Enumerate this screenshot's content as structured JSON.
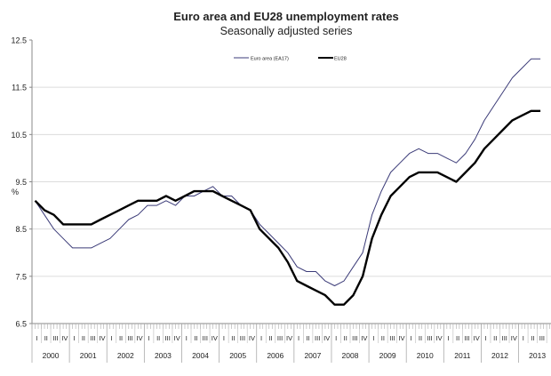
{
  "chart_data": {
    "type": "line",
    "title": "Euro area and EU28 unemployment rates",
    "subtitle": "Seasonally adjusted series",
    "ylabel": "%",
    "xlabel": "",
    "ylim": [
      6.5,
      12.5
    ],
    "yticks": [
      "12.5",
      "11.5",
      "10.5",
      "9.5",
      "8.5",
      "7.5",
      "6.5"
    ],
    "grid": true,
    "legend_position": "top-center",
    "quarters": [
      "I",
      "II",
      "III",
      "IV"
    ],
    "years": [
      "2000",
      "2001",
      "2002",
      "2003",
      "2004",
      "2005",
      "2006",
      "2007",
      "2008",
      "2009",
      "2010",
      "2011",
      "2012",
      "2013"
    ],
    "x_unit": "quarter, 2000-Q1 to 2013-Q3",
    "series": [
      {
        "name": "Euro area (EA17)",
        "color": "#3b3b78",
        "values": [
          9.1,
          8.8,
          8.5,
          8.3,
          8.1,
          8.1,
          8.1,
          8.2,
          8.3,
          8.5,
          8.7,
          8.8,
          9.0,
          9.0,
          9.1,
          9.0,
          9.2,
          9.2,
          9.3,
          9.4,
          9.2,
          9.2,
          9.0,
          8.9,
          8.6,
          8.4,
          8.2,
          8.0,
          7.7,
          7.6,
          7.6,
          7.4,
          7.3,
          7.4,
          7.7,
          8.0,
          8.8,
          9.3,
          9.7,
          9.9,
          10.1,
          10.2,
          10.1,
          10.1,
          10.0,
          9.9,
          10.1,
          10.4,
          10.8,
          11.1,
          11.4,
          11.7,
          11.9,
          12.1,
          12.1
        ]
      },
      {
        "name": "EU28",
        "color": "#000000",
        "values": [
          9.1,
          8.9,
          8.8,
          8.6,
          8.6,
          8.6,
          8.6,
          8.7,
          8.8,
          8.9,
          9.0,
          9.1,
          9.1,
          9.1,
          9.2,
          9.1,
          9.2,
          9.3,
          9.3,
          9.3,
          9.2,
          9.1,
          9.0,
          8.9,
          8.5,
          8.3,
          8.1,
          7.8,
          7.4,
          7.3,
          7.2,
          7.1,
          6.9,
          6.9,
          7.1,
          7.5,
          8.3,
          8.8,
          9.2,
          9.4,
          9.6,
          9.7,
          9.7,
          9.7,
          9.6,
          9.5,
          9.7,
          9.9,
          10.2,
          10.4,
          10.6,
          10.8,
          10.9,
          11.0,
          11.0
        ]
      }
    ]
  }
}
